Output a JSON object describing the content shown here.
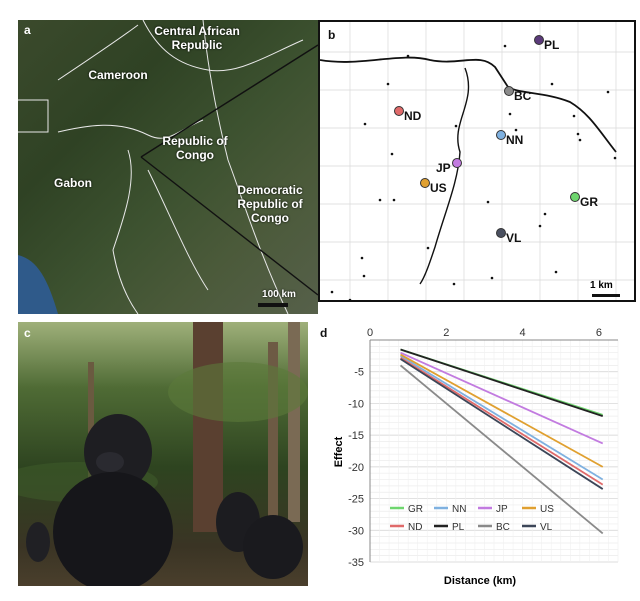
{
  "panel_a": {
    "tag": "a",
    "countries": {
      "car": "Central African Republic",
      "cameroon": "Cameroon",
      "congo": "Republic of Congo",
      "gabon": "Gabon",
      "drc": "Democratic Republic of Congo"
    },
    "scale": "100 km"
  },
  "panel_b": {
    "tag": "b",
    "sites": [
      {
        "id": "PL",
        "color": "#5b3a7a"
      },
      {
        "id": "BC",
        "color": "#8a8a8a"
      },
      {
        "id": "ND",
        "color": "#e06a6a"
      },
      {
        "id": "NN",
        "color": "#7fb1e0"
      },
      {
        "id": "JP",
        "color": "#c27be0"
      },
      {
        "id": "US",
        "color": "#e0a030"
      },
      {
        "id": "GR",
        "color": "#6ed66e"
      },
      {
        "id": "VL",
        "color": "#4a5060"
      }
    ],
    "scale": "1 km"
  },
  "panel_c": {
    "tag": "c"
  },
  "panel_d": {
    "tag": "d"
  },
  "chart_data": {
    "type": "line",
    "xlabel": "Distance (km)",
    "ylabel": "Effect",
    "xlim": [
      0,
      6.5
    ],
    "ylim": [
      -35,
      0
    ],
    "xticks": [
      0,
      2,
      4,
      6
    ],
    "yticks": [
      -5,
      -10,
      -15,
      -20,
      -25,
      -30,
      -35
    ],
    "grid": true,
    "legend_position": "bottom-left",
    "series": [
      {
        "name": "GR",
        "color": "#6ed66e",
        "x": [
          0.8,
          6.1
        ],
        "y": [
          -1.5,
          -11.8
        ]
      },
      {
        "name": "NN",
        "color": "#7fb1e0",
        "x": [
          0.8,
          6.1
        ],
        "y": [
          -2.5,
          -22.0
        ]
      },
      {
        "name": "JP",
        "color": "#c27be0",
        "x": [
          0.8,
          6.1
        ],
        "y": [
          -2.0,
          -16.3
        ]
      },
      {
        "name": "US",
        "color": "#e0a030",
        "x": [
          0.8,
          6.1
        ],
        "y": [
          -2.3,
          -20.0
        ]
      },
      {
        "name": "ND",
        "color": "#e06a6a",
        "x": [
          0.8,
          6.1
        ],
        "y": [
          -2.8,
          -22.8
        ]
      },
      {
        "name": "PL",
        "color": "#222222",
        "x": [
          0.8,
          6.1
        ],
        "y": [
          -1.5,
          -12.0
        ]
      },
      {
        "name": "BC",
        "color": "#8a8a8a",
        "x": [
          0.8,
          6.1
        ],
        "y": [
          -4.0,
          -30.5
        ]
      },
      {
        "name": "VL",
        "color": "#3c4658",
        "x": [
          0.8,
          6.1
        ],
        "y": [
          -3.0,
          -23.5
        ]
      }
    ]
  }
}
